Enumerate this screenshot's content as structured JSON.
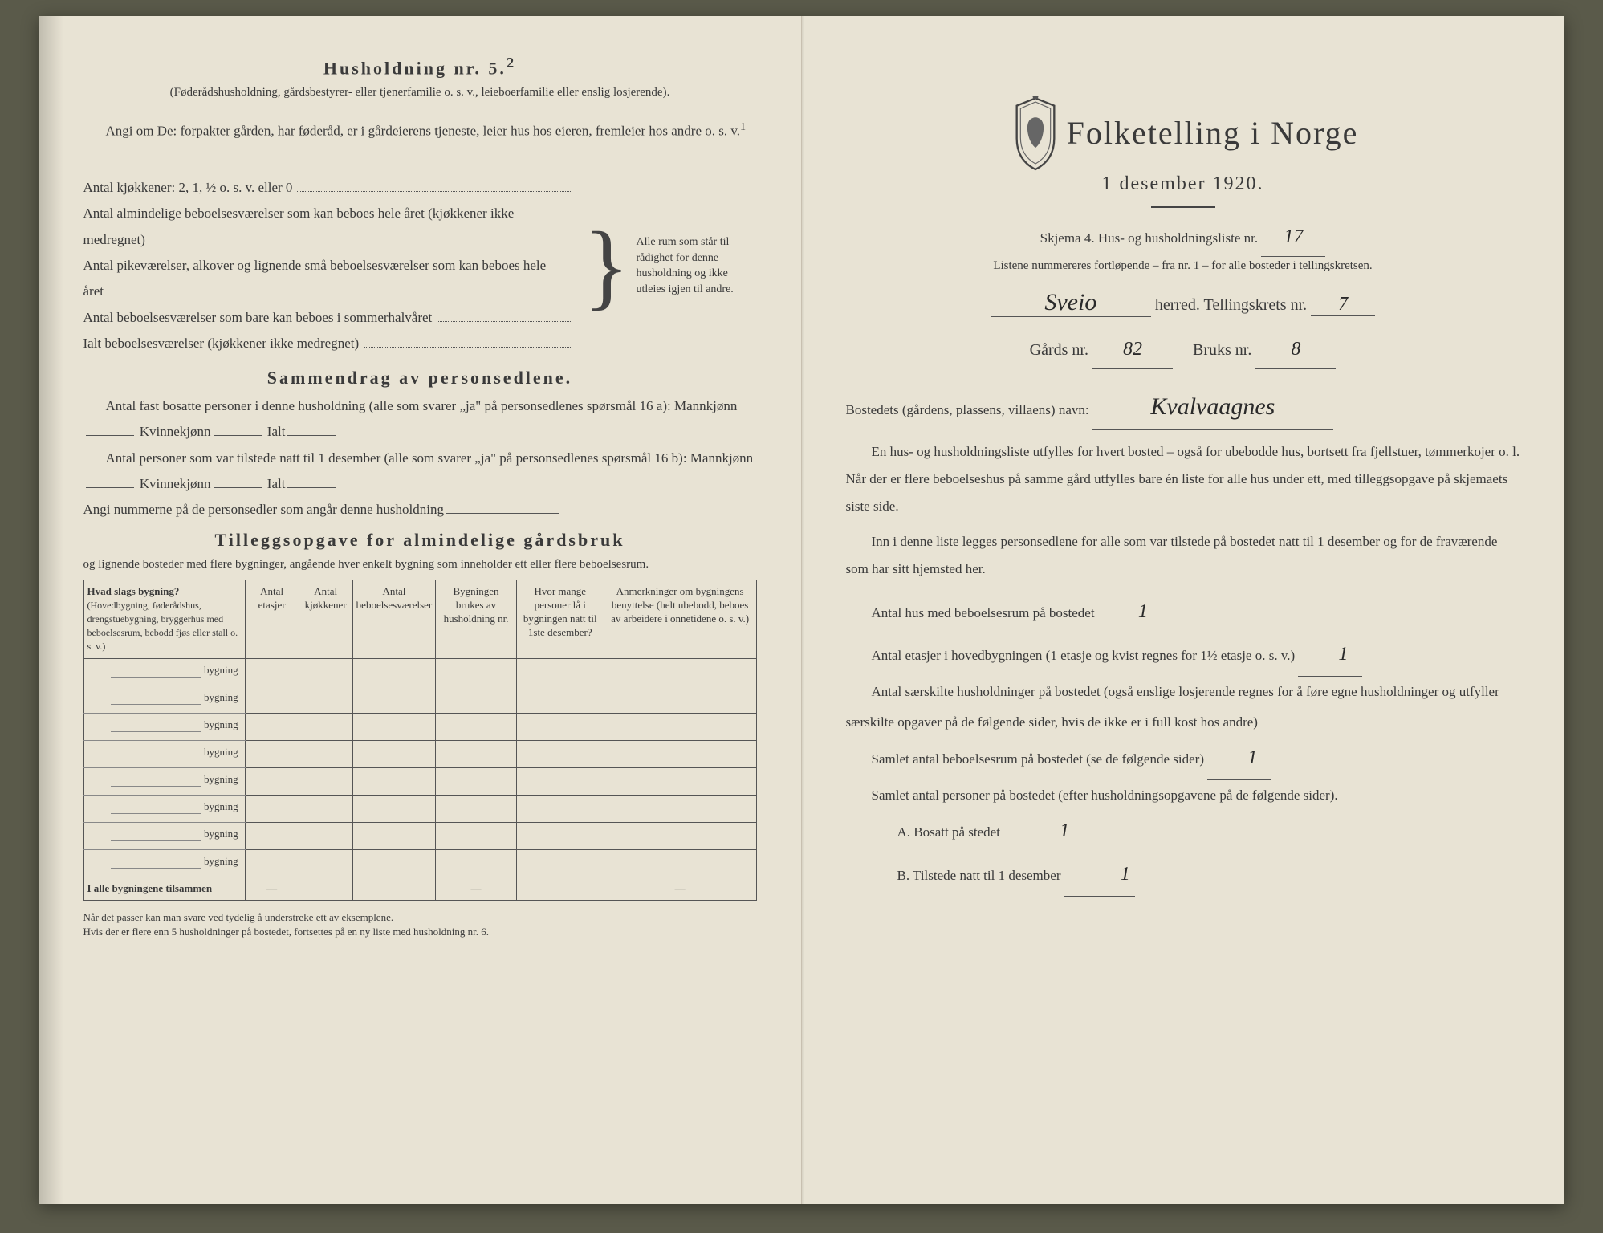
{
  "colors": {
    "paper": "#e8e3d4",
    "ink": "#3a3a3a",
    "background": "#5a5a4a",
    "rule": "#555555"
  },
  "left": {
    "h5_title": "Husholdning nr. 5.",
    "h5_sup": "2",
    "h5_note": "(Føderådshusholdning, gårdsbestyrer- eller tjenerfamilie o. s. v., leieboerfamilie eller enslig losjerende).",
    "angi_om": "Angi om De:  forpakter gården, har føderåd, er i gårdeierens tjeneste, leier hus hos eieren, fremleier hos andre o. s. v.",
    "angi_sup": "1",
    "kitchens": "Antal kjøkkener: 2, 1, ½ o. s. v. eller 0",
    "rooms1": "Antal almindelige beboelsesværelser som kan beboes hele året (kjøkkener ikke medregnet)",
    "rooms2": "Antal pikeværelser, alkover og lignende små beboelsesværelser som kan beboes hele året",
    "rooms3": "Antal beboelsesværelser som bare kan beboes i sommerhalvåret",
    "rooms_total": "Ialt beboelsesværelser (kjøkkener ikke medregnet)",
    "brace_text": "Alle rum som står til rådighet for denne husholdning og ikke utleies igjen til andre.",
    "sammendrag_title": "Sammendrag av personsedlene.",
    "s_line1a": "Antal fast bosatte personer i denne husholdning (alle som svarer „ja\" på personsedlenes spørsmål 16 a): Mannkjønn",
    "s_kv": "Kvinnekjønn",
    "s_ialt": "Ialt",
    "s_line2a": "Antal personer som var tilstede natt til 1 desember (alle som svarer „ja\" på personsedlenes spørsmål 16 b): Mannkjønn",
    "s_line3": "Angi nummerne på de personsedler som angår denne husholdning",
    "tillegg_title": "Tilleggsopgave for almindelige gårdsbruk",
    "tillegg_sub": "og lignende bosteder med flere bygninger, angående hver enkelt bygning som inneholder ett eller flere beboelsesrum.",
    "table": {
      "col1_head": "Hvad slags bygning?",
      "col1_sub": "(Hovedbygning, føderådshus, drengstuebygning, bryggerhus med beboelsesrum, bebodd fjøs eller stall o. s. v.)",
      "col2": "Antal etasjer",
      "col3": "Antal kjøkkener",
      "col4": "Antal beboelsesværelser",
      "col5": "Bygningen brukes av husholdning nr.",
      "col6": "Hvor mange personer lå i bygningen natt til 1ste desember?",
      "col7": "Anmerkninger om bygningens benyttelse (helt ubebodd, beboes av arbeidere i onnetidene o. s. v.)",
      "row_label": "bygning",
      "row_count": 8,
      "total_label": "I alle bygningene tilsammen"
    },
    "footnote": "Når det passer kan man svare ved tydelig å understreke ett av eksemplene.\nHvis der er flere enn 5 husholdninger på bostedet, fortsettes på en ny liste med husholdning nr. 6."
  },
  "right": {
    "title": "Folketelling i Norge",
    "date": "1 desember 1920.",
    "skjema": "Skjema 4.  Hus- og husholdningsliste nr.",
    "liste_nr": "17",
    "listene_note": "Listene nummereres fortløpende – fra nr. 1 – for alle bosteder i tellingskretsen.",
    "herred_value": "Sveio",
    "herred_label": "herred.   Tellingskrets nr.",
    "tellingskrets_nr": "7",
    "gards_label": "Gårds nr.",
    "gards_nr": "82",
    "bruks_label": "Bruks nr.",
    "bruks_nr": "8",
    "bosted_label": "Bostedets (gårdens, plassens, villaens) navn:",
    "bosted_value": "Kvalvaagnes",
    "para1": "En hus- og husholdningsliste utfylles for hvert bosted – også for ubebodde hus, bortsett fra fjellstuer, tømmerkojer o. l.  Når der er flere beboelseshus på samme gård utfylles bare én liste for alle hus under ett, med tilleggsopgave på skjemaets siste side.",
    "para2": "Inn i denne liste legges personsedlene for alle som var tilstede på bostedet natt til 1 desember og for de fraværende som har sitt hjemsted her.",
    "q1_label": "Antal hus med beboelsesrum på bostedet",
    "q1_val": "1",
    "q2_label": "Antal etasjer i hovedbygningen (1 etasje og kvist regnes for 1½ etasje o. s. v.)",
    "q2_val": "1",
    "q3_label": "Antal særskilte husholdninger på bostedet (også enslige losjerende regnes for å føre egne husholdninger og utfyller særskilte opgaver på de følgende sider, hvis de ikke er i full kost hos andre)",
    "q3_val": "",
    "q4_label": "Samlet antal beboelsesrum på bostedet (se de følgende sider)",
    "q4_val": "1",
    "q5_label": "Samlet antal personer på bostedet (efter husholdningsopgavene på de følgende sider).",
    "qA_label": "A.  Bosatt på stedet",
    "qA_val": "1",
    "qB_label": "B.  Tilstede natt til 1 desember",
    "qB_val": "1"
  }
}
